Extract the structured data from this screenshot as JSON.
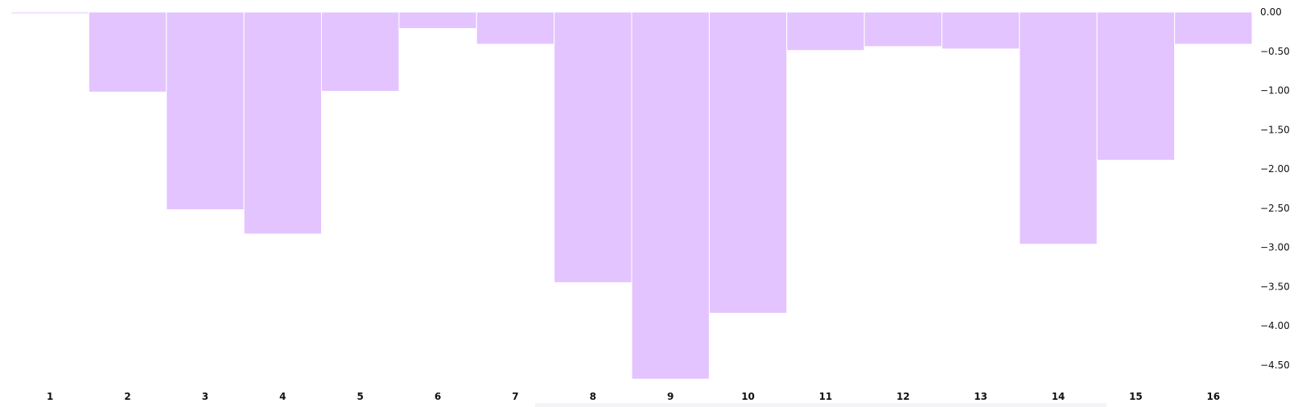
{
  "chart_data": {
    "type": "bar",
    "categories": [
      "1",
      "2",
      "3",
      "4",
      "5",
      "6",
      "7",
      "8",
      "9",
      "10",
      "11",
      "12",
      "13",
      "14",
      "15",
      "16"
    ],
    "values": [
      -0.02,
      -1.02,
      -2.52,
      -2.83,
      -1.01,
      -0.21,
      -0.41,
      -3.45,
      -4.68,
      -3.84,
      -0.49,
      -0.44,
      -0.47,
      -2.96,
      -1.89,
      -0.41
    ],
    "title": "",
    "xlabel": "",
    "ylabel": "",
    "ylim": [
      -4.68,
      0
    ],
    "y_ticks": [
      0,
      -0.5,
      -1,
      -1.5,
      -2,
      -2.5,
      -3,
      -3.5,
      -4,
      -4.5
    ],
    "y_tick_labels": [
      "0.00",
      "−0.50",
      "−1.00",
      "−1.50",
      "−2.00",
      "−2.50",
      "−3.00",
      "−3.50",
      "−4.00",
      "−4.50"
    ],
    "y_axis_position": "right",
    "grid": false,
    "legend": "none",
    "colors": {
      "bar_fill": "#e3c4ff",
      "bar_stroke": "#ffffff",
      "text": "#111111",
      "background": "#ffffff"
    }
  }
}
